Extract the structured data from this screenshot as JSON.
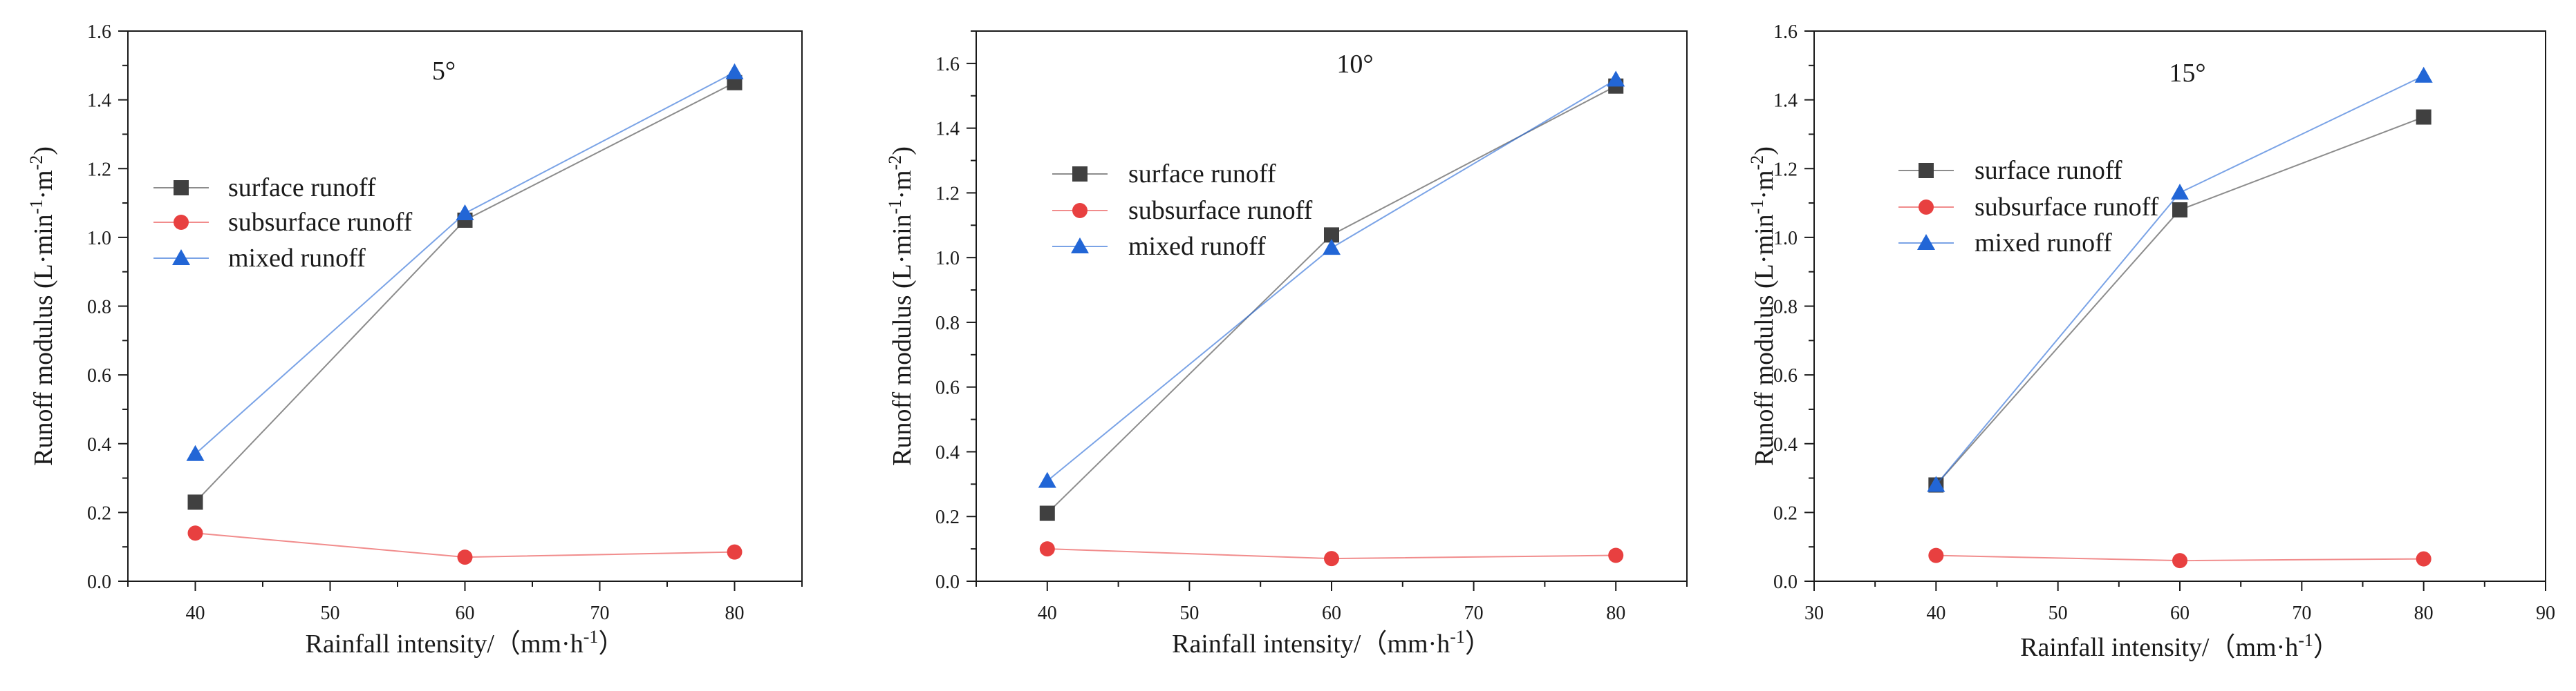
{
  "chart_data": [
    {
      "type": "line",
      "title": "5°",
      "xlabel": "Rainfall intensity/（mm·h",
      "xlabel_sup": "-1",
      "xlabel_tail": "）",
      "ylabel": "Runoff modulus (L·min",
      "ylabel_sup1": "-1",
      "ylabel_mid": "·m",
      "ylabel_sup2": "-2",
      "ylabel_tail": ")",
      "xlim": [
        35,
        85
      ],
      "ylim": [
        0,
        1.6
      ],
      "xticks": [
        40,
        50,
        60,
        70,
        80
      ],
      "yticks": [
        0.0,
        0.2,
        0.4,
        0.6,
        0.8,
        1.0,
        1.2,
        1.4,
        1.6
      ],
      "ytick_labels": [
        "0.0",
        "0.2",
        "0.4",
        "0.6",
        "0.8",
        "1.0",
        "1.2",
        "1.4",
        "1.6"
      ],
      "x": [
        40,
        60,
        80
      ],
      "series": [
        {
          "name": "surface runoff",
          "color": "#404040",
          "marker": "square",
          "values": [
            0.23,
            1.05,
            1.45
          ]
        },
        {
          "name": "subsurface runoff",
          "color": "#e84040",
          "marker": "circle",
          "values": [
            0.14,
            0.07,
            0.085
          ]
        },
        {
          "name": "mixed runoff",
          "color": "#2266d6",
          "marker": "triangle",
          "values": [
            0.37,
            1.07,
            1.48
          ]
        }
      ]
    },
    {
      "type": "line",
      "title": "10°",
      "xlabel": "Rainfall intensity/（mm·h",
      "xlabel_sup": "-1",
      "xlabel_tail": "）",
      "ylabel": "Runoff modulus (L·min",
      "ylabel_sup1": "-1",
      "ylabel_mid": "·m",
      "ylabel_sup2": "-2",
      "ylabel_tail": ")",
      "xlim": [
        35,
        85
      ],
      "ylim": [
        0,
        1.7
      ],
      "xticks": [
        40,
        50,
        60,
        70,
        80
      ],
      "yticks": [
        0.0,
        0.2,
        0.4,
        0.6,
        0.8,
        1.0,
        1.2,
        1.4,
        1.6
      ],
      "ytick_labels": [
        "0.0",
        "0.2",
        "0.4",
        "0.6",
        "0.8",
        "1.0",
        "1.2",
        "1.4",
        "1.6"
      ],
      "x": [
        40,
        60,
        80
      ],
      "series": [
        {
          "name": "surface runoff",
          "color": "#404040",
          "marker": "square",
          "values": [
            0.21,
            1.07,
            1.53
          ]
        },
        {
          "name": "subsurface runoff",
          "color": "#e84040",
          "marker": "circle",
          "values": [
            0.1,
            0.07,
            0.08
          ]
        },
        {
          "name": "mixed runoff",
          "color": "#2266d6",
          "marker": "triangle",
          "values": [
            0.31,
            1.03,
            1.55
          ]
        }
      ]
    },
    {
      "type": "line",
      "title": "15°",
      "xlabel": "Rainfall intensity/（mm·h",
      "xlabel_sup": "-1",
      "xlabel_tail": "）",
      "ylabel": "Runoff modulus (L·min",
      "ylabel_sup1": "-1",
      "ylabel_mid": "·m",
      "ylabel_sup2": "-2",
      "ylabel_tail": ")",
      "xlim": [
        30,
        90
      ],
      "ylim": [
        0,
        1.6
      ],
      "xticks": [
        30,
        40,
        50,
        60,
        70,
        80,
        90
      ],
      "yticks": [
        0.0,
        0.2,
        0.4,
        0.6,
        0.8,
        1.0,
        1.2,
        1.4,
        1.6
      ],
      "ytick_labels": [
        "0.0",
        "0.2",
        "0.4",
        "0.6",
        "0.8",
        "1.0",
        "1.2",
        "1.4",
        "1.6"
      ],
      "x": [
        40,
        60,
        80
      ],
      "series": [
        {
          "name": "surface runoff",
          "color": "#404040",
          "marker": "square",
          "values": [
            0.28,
            1.08,
            1.35
          ]
        },
        {
          "name": "subsurface runoff",
          "color": "#e84040",
          "marker": "circle",
          "values": [
            0.075,
            0.06,
            0.065
          ]
        },
        {
          "name": "mixed runoff",
          "color": "#2266d6",
          "marker": "triangle",
          "values": [
            0.28,
            1.13,
            1.47
          ]
        }
      ]
    }
  ]
}
